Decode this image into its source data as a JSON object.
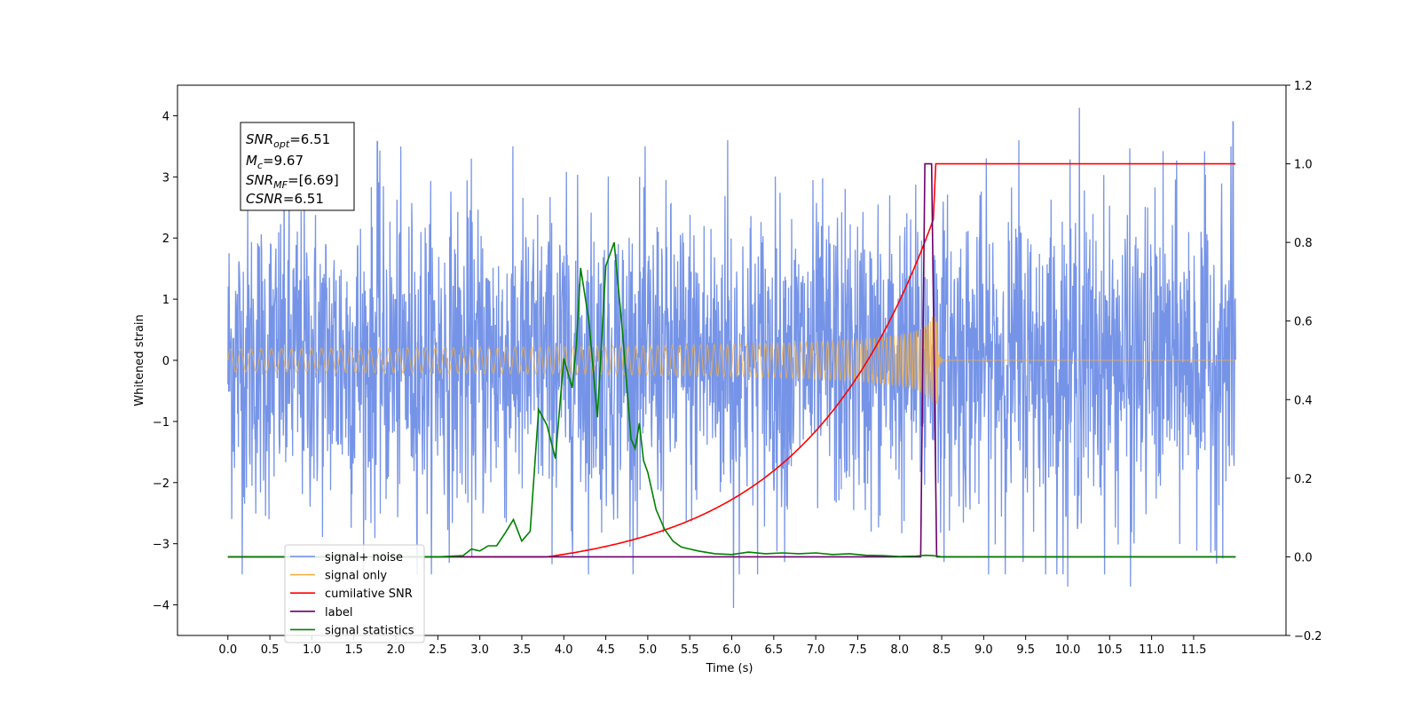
{
  "chart_data": {
    "type": "line",
    "xlabel": "Time (s)",
    "ylabel_left": "Whitened strain",
    "xlim": [
      -0.6,
      12.6
    ],
    "ylim_left": [
      -4.5,
      4.5
    ],
    "ylim_right": [
      -0.2,
      1.2
    ],
    "x_ticks": [
      "0.0",
      "0.5",
      "1.0",
      "1.5",
      "2.0",
      "2.5",
      "3.0",
      "3.5",
      "4.0",
      "4.5",
      "5.0",
      "5.5",
      "6.0",
      "6.5",
      "7.0",
      "7.5",
      "8.0",
      "8.5",
      "9.0",
      "9.5",
      "10.0",
      "10.5",
      "11.0",
      "11.5"
    ],
    "y_ticks_left": [
      "4",
      "3",
      "2",
      "1",
      "0",
      "−1",
      "−2",
      "−3",
      "−4"
    ],
    "y_ticks_right": [
      "1.2",
      "1.0",
      "0.8",
      "0.6",
      "0.4",
      "0.2",
      "0.0",
      "−0.2"
    ],
    "annotation": {
      "snr_opt": {
        "main": "SNR",
        "sub": "opt",
        "value": "=6.51"
      },
      "mc": {
        "main": "M",
        "sub": "c",
        "value": "=9.67"
      },
      "snr_mf": {
        "main": "SNR",
        "sub": "MF",
        "value": "=[6.69]"
      },
      "csnr": {
        "main": "CSNR",
        "value": "=6.51"
      }
    },
    "legend": {
      "placement": "lower-left",
      "entries": [
        {
          "label": "signal+ noise",
          "color": "#6f8ee6"
        },
        {
          "label": "signal only",
          "color": "#f5b041"
        },
        {
          "label": "cumilative SNR",
          "color": "#ff0000"
        },
        {
          "label": "label",
          "color": "#6b006b"
        },
        {
          "label": "signal statistics",
          "color": "#008000"
        }
      ]
    },
    "series": [
      {
        "name": "signal+ noise",
        "axis": "left",
        "color": "#6f8ee6",
        "description": "noise",
        "x_range": [
          0.0,
          12.0
        ],
        "typical_amplitude": 1.2,
        "notable_peaks": [
          [
            1.78,
            3.58
          ],
          [
            2.9,
            3.3
          ],
          [
            5.95,
            3.6
          ],
          [
            6.02,
            -4.05
          ],
          [
            9.42,
            3.6
          ],
          [
            10.14,
            4.13
          ],
          [
            11.97,
            3.9
          ],
          [
            0.17,
            -3.5
          ],
          [
            10.75,
            -3.7
          ],
          [
            10.0,
            -3.7
          ]
        ]
      },
      {
        "name": "signal only",
        "axis": "left",
        "color": "#f5b041",
        "description": "chirp",
        "x_range": [
          0.0,
          12.0
        ],
        "merger_time": 8.45,
        "peak_amplitude": 0.72
      },
      {
        "name": "cumilative SNR",
        "axis": "right",
        "x": [
          0.0,
          3.8,
          4.2,
          4.6,
          5.0,
          5.5,
          6.0,
          6.5,
          7.0,
          7.5,
          7.8,
          8.0,
          8.2,
          8.3,
          8.42,
          8.43,
          12.0
        ],
        "y": [
          0.0,
          0.0,
          0.005,
          0.02,
          0.05,
          0.105,
          0.155,
          0.215,
          0.285,
          0.38,
          0.455,
          0.52,
          0.65,
          0.74,
          0.87,
          1.0,
          1.0
        ]
      },
      {
        "name": "label",
        "axis": "right",
        "x": [
          0.0,
          8.25,
          8.3,
          8.38,
          8.44,
          8.5,
          12.0
        ],
        "y": [
          0.0,
          0.0,
          1.0,
          1.0,
          0.0,
          0.0,
          0.0
        ]
      },
      {
        "name": "signal statistics",
        "axis": "right",
        "x": [
          0.0,
          2.5,
          2.8,
          2.9,
          3.0,
          3.1,
          3.2,
          3.3,
          3.4,
          3.5,
          3.6,
          3.7,
          3.8,
          3.9,
          4.0,
          4.1,
          4.15,
          4.2,
          4.3,
          4.4,
          4.5,
          4.6,
          4.7,
          4.8,
          4.85,
          4.9,
          4.95,
          5.0,
          5.1,
          5.2,
          5.3,
          5.4,
          5.5,
          5.6,
          5.8,
          6.0,
          6.2,
          6.4,
          6.6,
          6.8,
          7.0,
          7.2,
          7.4,
          7.6,
          7.8,
          8.0,
          8.2,
          8.3,
          8.4,
          8.5,
          12.0
        ],
        "y": [
          0.0,
          0.0,
          0.003,
          0.02,
          0.015,
          0.028,
          0.028,
          0.06,
          0.095,
          0.04,
          0.065,
          0.375,
          0.335,
          0.25,
          0.505,
          0.43,
          0.54,
          0.735,
          0.6,
          0.355,
          0.74,
          0.8,
          0.57,
          0.3,
          0.275,
          0.34,
          0.245,
          0.215,
          0.12,
          0.07,
          0.04,
          0.025,
          0.02,
          0.015,
          0.008,
          0.006,
          0.012,
          0.008,
          0.01,
          0.008,
          0.01,
          0.006,
          0.008,
          0.004,
          0.003,
          0.001,
          0.002,
          0.004,
          0.003,
          0.0,
          0.0
        ]
      }
    ]
  }
}
